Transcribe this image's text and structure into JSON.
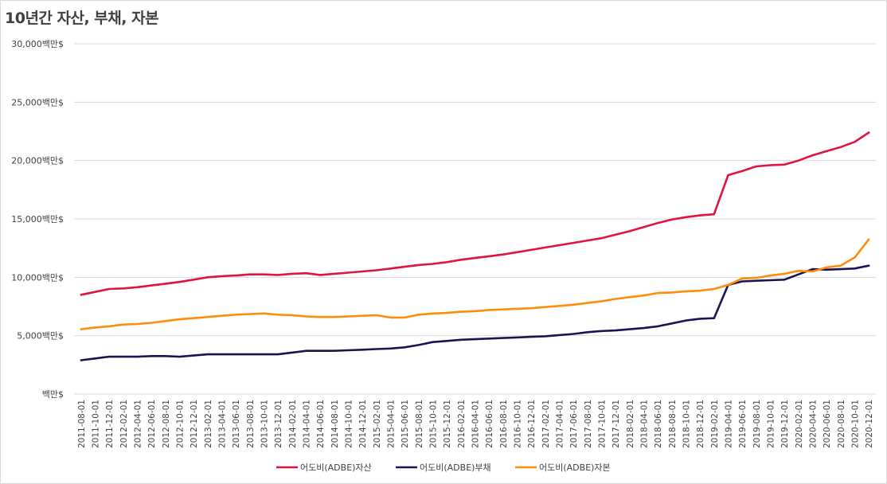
{
  "chart_data": {
    "type": "line",
    "title": "10년간 자산, 부채, 자본",
    "ylim": [
      0,
      30000
    ],
    "yticks": [
      {
        "value": 30000,
        "label": "30,000백만$"
      },
      {
        "value": 25000,
        "label": "25,000백만$"
      },
      {
        "value": 20000,
        "label": "20,000백만$"
      },
      {
        "value": 15000,
        "label": "15,000백만$"
      },
      {
        "value": 10000,
        "label": "10,000백만$"
      },
      {
        "value": 5000,
        "label": "5,000백만$"
      },
      {
        "value": 0,
        "label": "백만$"
      }
    ],
    "grid": true,
    "legend_position": "bottom",
    "categories": [
      "2011-08-01",
      "2011-10-01",
      "2011-12-01",
      "2012-02-01",
      "2012-04-01",
      "2012-06-01",
      "2012-08-01",
      "2012-10-01",
      "2012-12-01",
      "2013-02-01",
      "2013-04-01",
      "2013-06-01",
      "2013-08-01",
      "2013-10-01",
      "2013-12-01",
      "2014-02-01",
      "2014-04-01",
      "2014-06-01",
      "2014-08-01",
      "2014-10-01",
      "2014-12-01",
      "2015-02-01",
      "2015-04-01",
      "2015-06-01",
      "2015-08-01",
      "2015-10-01",
      "2015-12-01",
      "2016-02-01",
      "2016-04-01",
      "2016-06-01",
      "2016-08-01",
      "2016-10-01",
      "2016-12-01",
      "2017-02-01",
      "2017-04-01",
      "2017-06-01",
      "2017-08-01",
      "2017-10-01",
      "2017-12-01",
      "2018-02-01",
      "2018-04-01",
      "2018-06-01",
      "2018-08-01",
      "2018-10-01",
      "2018-12-01",
      "2019-02-01",
      "2019-04-01",
      "2019-06-01",
      "2019-08-01",
      "2019-10-01",
      "2019-12-01",
      "2020-02-01",
      "2020-04-01",
      "2020-06-01",
      "2020-08-01",
      "2020-10-01",
      "2020-12-01"
    ],
    "series": [
      {
        "name": "어도비(ADBE)자산",
        "color": "#e0143c",
        "values": [
          8500,
          8750,
          9000,
          9050,
          9150,
          9300,
          9450,
          9600,
          9800,
          10000,
          10100,
          10150,
          10250,
          10250,
          10200,
          10300,
          10350,
          10200,
          10300,
          10400,
          10500,
          10600,
          10750,
          10900,
          11050,
          11150,
          11300,
          11500,
          11650,
          11800,
          11950,
          12150,
          12350,
          12550,
          12750,
          12950,
          13150,
          13350,
          13650,
          13950,
          14300,
          14650,
          14950,
          15150,
          15300,
          15400,
          18750,
          19100,
          19500,
          19600,
          19650,
          20000,
          20450,
          20800,
          21150,
          21600,
          22400
        ]
      },
      {
        "name": "어도비(ADBE)부채",
        "color": "#1a1454",
        "values": [
          2900,
          3050,
          3200,
          3200,
          3200,
          3250,
          3250,
          3200,
          3300,
          3400,
          3400,
          3400,
          3400,
          3400,
          3400,
          3550,
          3700,
          3700,
          3700,
          3750,
          3800,
          3850,
          3900,
          4000,
          4200,
          4450,
          4550,
          4650,
          4700,
          4750,
          4800,
          4850,
          4900,
          4950,
          5050,
          5150,
          5300,
          5400,
          5450,
          5550,
          5650,
          5800,
          6050,
          6300,
          6450,
          6500,
          9350,
          9650,
          9700,
          9750,
          9800,
          10250,
          10700,
          10650,
          10700,
          10750,
          11000
        ]
      },
      {
        "name": "어도비(ADBE)자본",
        "color": "#ff8c0a",
        "values": [
          5550,
          5700,
          5800,
          5950,
          6000,
          6100,
          6250,
          6400,
          6500,
          6600,
          6700,
          6800,
          6850,
          6900,
          6800,
          6750,
          6650,
          6600,
          6600,
          6650,
          6700,
          6750,
          6550,
          6550,
          6800,
          6900,
          6950,
          7050,
          7100,
          7200,
          7250,
          7300,
          7350,
          7450,
          7550,
          7650,
          7800,
          7950,
          8150,
          8300,
          8450,
          8650,
          8700,
          8800,
          8850,
          9000,
          9350,
          9900,
          9950,
          10150,
          10300,
          10550,
          10500,
          10850,
          11000,
          11700,
          13250
        ]
      }
    ]
  }
}
